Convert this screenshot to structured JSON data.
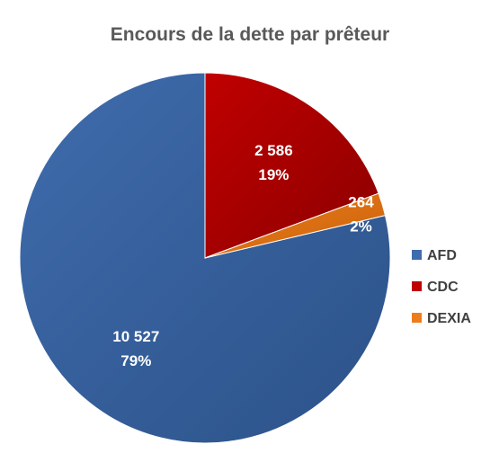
{
  "chart_data": {
    "type": "pie",
    "title": "Encours de la dette par prêteur",
    "legend_position": "right",
    "slices": [
      {
        "name": "AFD",
        "value": 10527,
        "value_label": "10 527",
        "percent_label": "79%",
        "color": "#3f6cad",
        "color_dark": "#2c5288"
      },
      {
        "name": "CDC",
        "value": 2586,
        "value_label": "2 586",
        "percent_label": "19%",
        "color": "#c00000",
        "color_dark": "#8b0000"
      },
      {
        "name": "DEXIA",
        "value": 264,
        "value_label": "264",
        "percent_label": "2%",
        "color": "#ed7d1a",
        "color_dark": "#c9610c"
      }
    ]
  }
}
